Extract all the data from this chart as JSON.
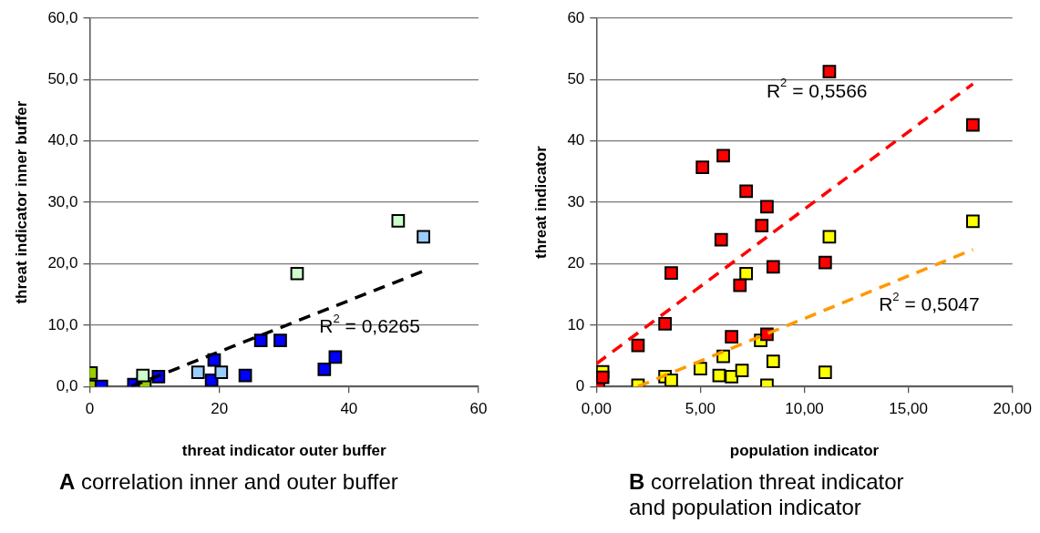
{
  "chart_data": [
    {
      "type": "scatter",
      "xlabel": "threat indicator outer buffer",
      "ylabel": "threat indicator inner buffer",
      "xlim": [
        0,
        60
      ],
      "ylim": [
        0,
        60
      ],
      "xticks": [
        0,
        20,
        40,
        60
      ],
      "yticks": [
        {
          "value": 0,
          "label": "0,0"
        },
        {
          "value": 10,
          "label": "10,0"
        },
        {
          "value": 20,
          "label": "20,0"
        },
        {
          "value": 30,
          "label": "30,0"
        },
        {
          "value": 40,
          "label": "40,0"
        },
        {
          "value": 50,
          "label": "50,0"
        },
        {
          "value": 60,
          "label": "60,0"
        }
      ],
      "grid": "y",
      "legend": false,
      "series": [
        {
          "marker": "square",
          "color": "#0000ff",
          "x": [
            1.8,
            6.8,
            10.6,
            19.2,
            18.8,
            24,
            26.4,
            29.4,
            37.9,
            36.2
          ],
          "values": [
            0,
            0.3,
            1.6,
            4.3,
            1.0,
            1.8,
            7.5,
            7.5,
            4.8,
            2.8
          ]
        },
        {
          "marker": "square",
          "color": "#99cc00",
          "x": [
            0.2,
            0,
            8.5
          ],
          "values": [
            2.2,
            0,
            0
          ]
        },
        {
          "marker": "square",
          "color": "#ccffcc",
          "x": [
            8.2,
            32,
            47.6
          ],
          "values": [
            1.8,
            18.4,
            27
          ]
        },
        {
          "marker": "square",
          "color": "#99ccff",
          "x": [
            16.7,
            20.3,
            51.5
          ],
          "values": [
            2.3,
            2.3,
            24.4
          ]
        },
        {
          "type": "line",
          "color": "#000000",
          "line_style": "dashed",
          "x": [
            6.4,
            51.5
          ],
          "values": [
            0,
            18.8
          ]
        }
      ],
      "annotations": [
        "R$^{2}$ = 0,6265",
        "A correlation inner and outer buffer"
      ]
    },
    {
      "type": "scatter",
      "xlabel": "population indicator",
      "ylabel": "threat indicator",
      "xlim": [
        0,
        20
      ],
      "ylim": [
        0,
        60
      ],
      "xticks": [
        {
          "value": 0,
          "label": "0,00"
        },
        {
          "value": 5,
          "label": "5,00"
        },
        {
          "value": 10,
          "label": "10,00"
        },
        {
          "value": 15,
          "label": "15,00"
        },
        {
          "value": 20,
          "label": "20,00"
        }
      ],
      "yticks": [
        0,
        10,
        20,
        30,
        40,
        50,
        60
      ],
      "grid": "y",
      "legend": false,
      "series": [
        {
          "marker": "square",
          "color": "#ffff00",
          "x": [
            0.3,
            2.0,
            3.3,
            3.6,
            5.0,
            5.9,
            6.1,
            6.5,
            7.0,
            7.2,
            7.9,
            8.5,
            8.2,
            11.0,
            11.2,
            18.1
          ],
          "values": [
            2.4,
            0.2,
            1.6,
            1.0,
            2.9,
            1.8,
            4.9,
            1.6,
            2.6,
            18.4,
            7.5,
            4.1,
            0.2,
            2.3,
            24.4,
            26.9
          ]
        },
        {
          "marker": "square",
          "color": "#ff0000",
          "x": [
            0.1,
            0.3,
            2.0,
            3.3,
            3.6,
            6.5,
            6.9,
            8.5,
            8.2,
            11.0,
            6.0,
            5.1,
            6.1,
            7.2,
            8.2,
            7.95,
            11.2,
            18.1
          ],
          "values": [
            0,
            1.5,
            6.7,
            10.2,
            18.5,
            8.1,
            16.5,
            19.5,
            8.5,
            20.2,
            23.9,
            35.7,
            37.6,
            31.8,
            29.3,
            26.2,
            51.3,
            42.6
          ]
        },
        {
          "type": "line",
          "color": "#ff0000",
          "line_style": "dashed",
          "x": [
            0,
            18.1
          ],
          "values": [
            3.7,
            49.3
          ]
        },
        {
          "type": "line",
          "color": "#ff9900",
          "line_style": "dashed",
          "x": [
            2.0,
            18.1
          ],
          "values": [
            0,
            22.3
          ]
        }
      ],
      "annotations": [
        "R$^{2}$ = 0,5566",
        "R$^{2}$ = 0,5047",
        "B correlation threat indicator and population indicator"
      ]
    }
  ]
}
